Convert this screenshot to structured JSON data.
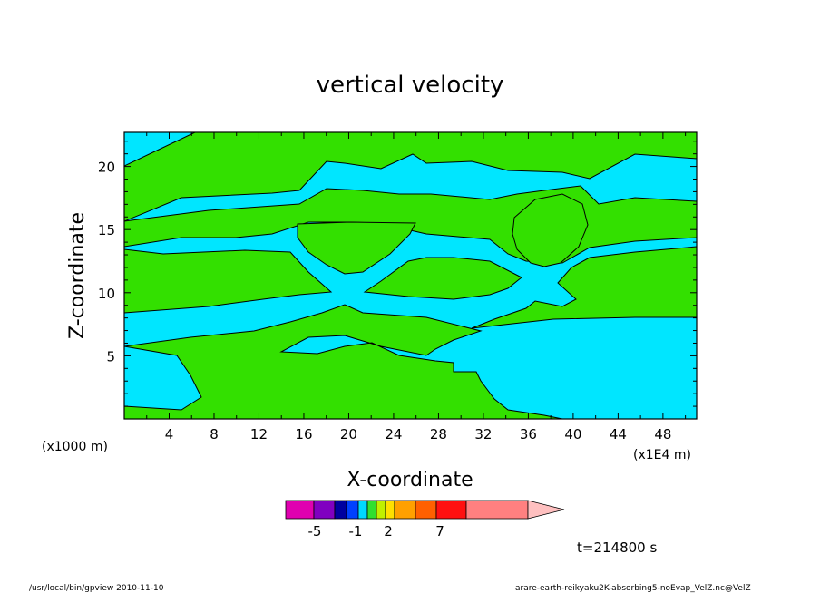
{
  "chart_data": {
    "type": "heatmap",
    "title": "vertical velocity",
    "xlabel": "X-coordinate",
    "ylabel": "Z-coordinate",
    "x_unit_left": "(x1000 m)",
    "x_unit_right": "(x1E4 m)",
    "xlim": [
      0,
      51
    ],
    "ylim": [
      0,
      22.7
    ],
    "x_ticks": [
      "4",
      "8",
      "12",
      "16",
      "20",
      "24",
      "28",
      "32",
      "36",
      "40",
      "44",
      "48"
    ],
    "y_ticks": [
      "5",
      "10",
      "15",
      "20"
    ],
    "time_label": "t=214800 s",
    "colorbar": {
      "colors": [
        "#e000b0",
        "#8000c0",
        "#0000a0",
        "#0040ff",
        "#00d8ff",
        "#30e030",
        "#c0f000",
        "#ffe000",
        "#ffa000",
        "#ff6000",
        "#ff1010",
        "#ff8080",
        "#ffc0c0"
      ],
      "labels": [
        "-5",
        "-1",
        "2",
        "7"
      ]
    },
    "fill_colors": {
      "negative": "#00e6ff",
      "positive": "#33e000"
    }
  },
  "footer": {
    "left": "/usr/local/bin/gpview   2010-11-10",
    "right": "arare-earth-reikyaku2K-absorbing5-noEvap_VelZ.nc@VelZ"
  }
}
